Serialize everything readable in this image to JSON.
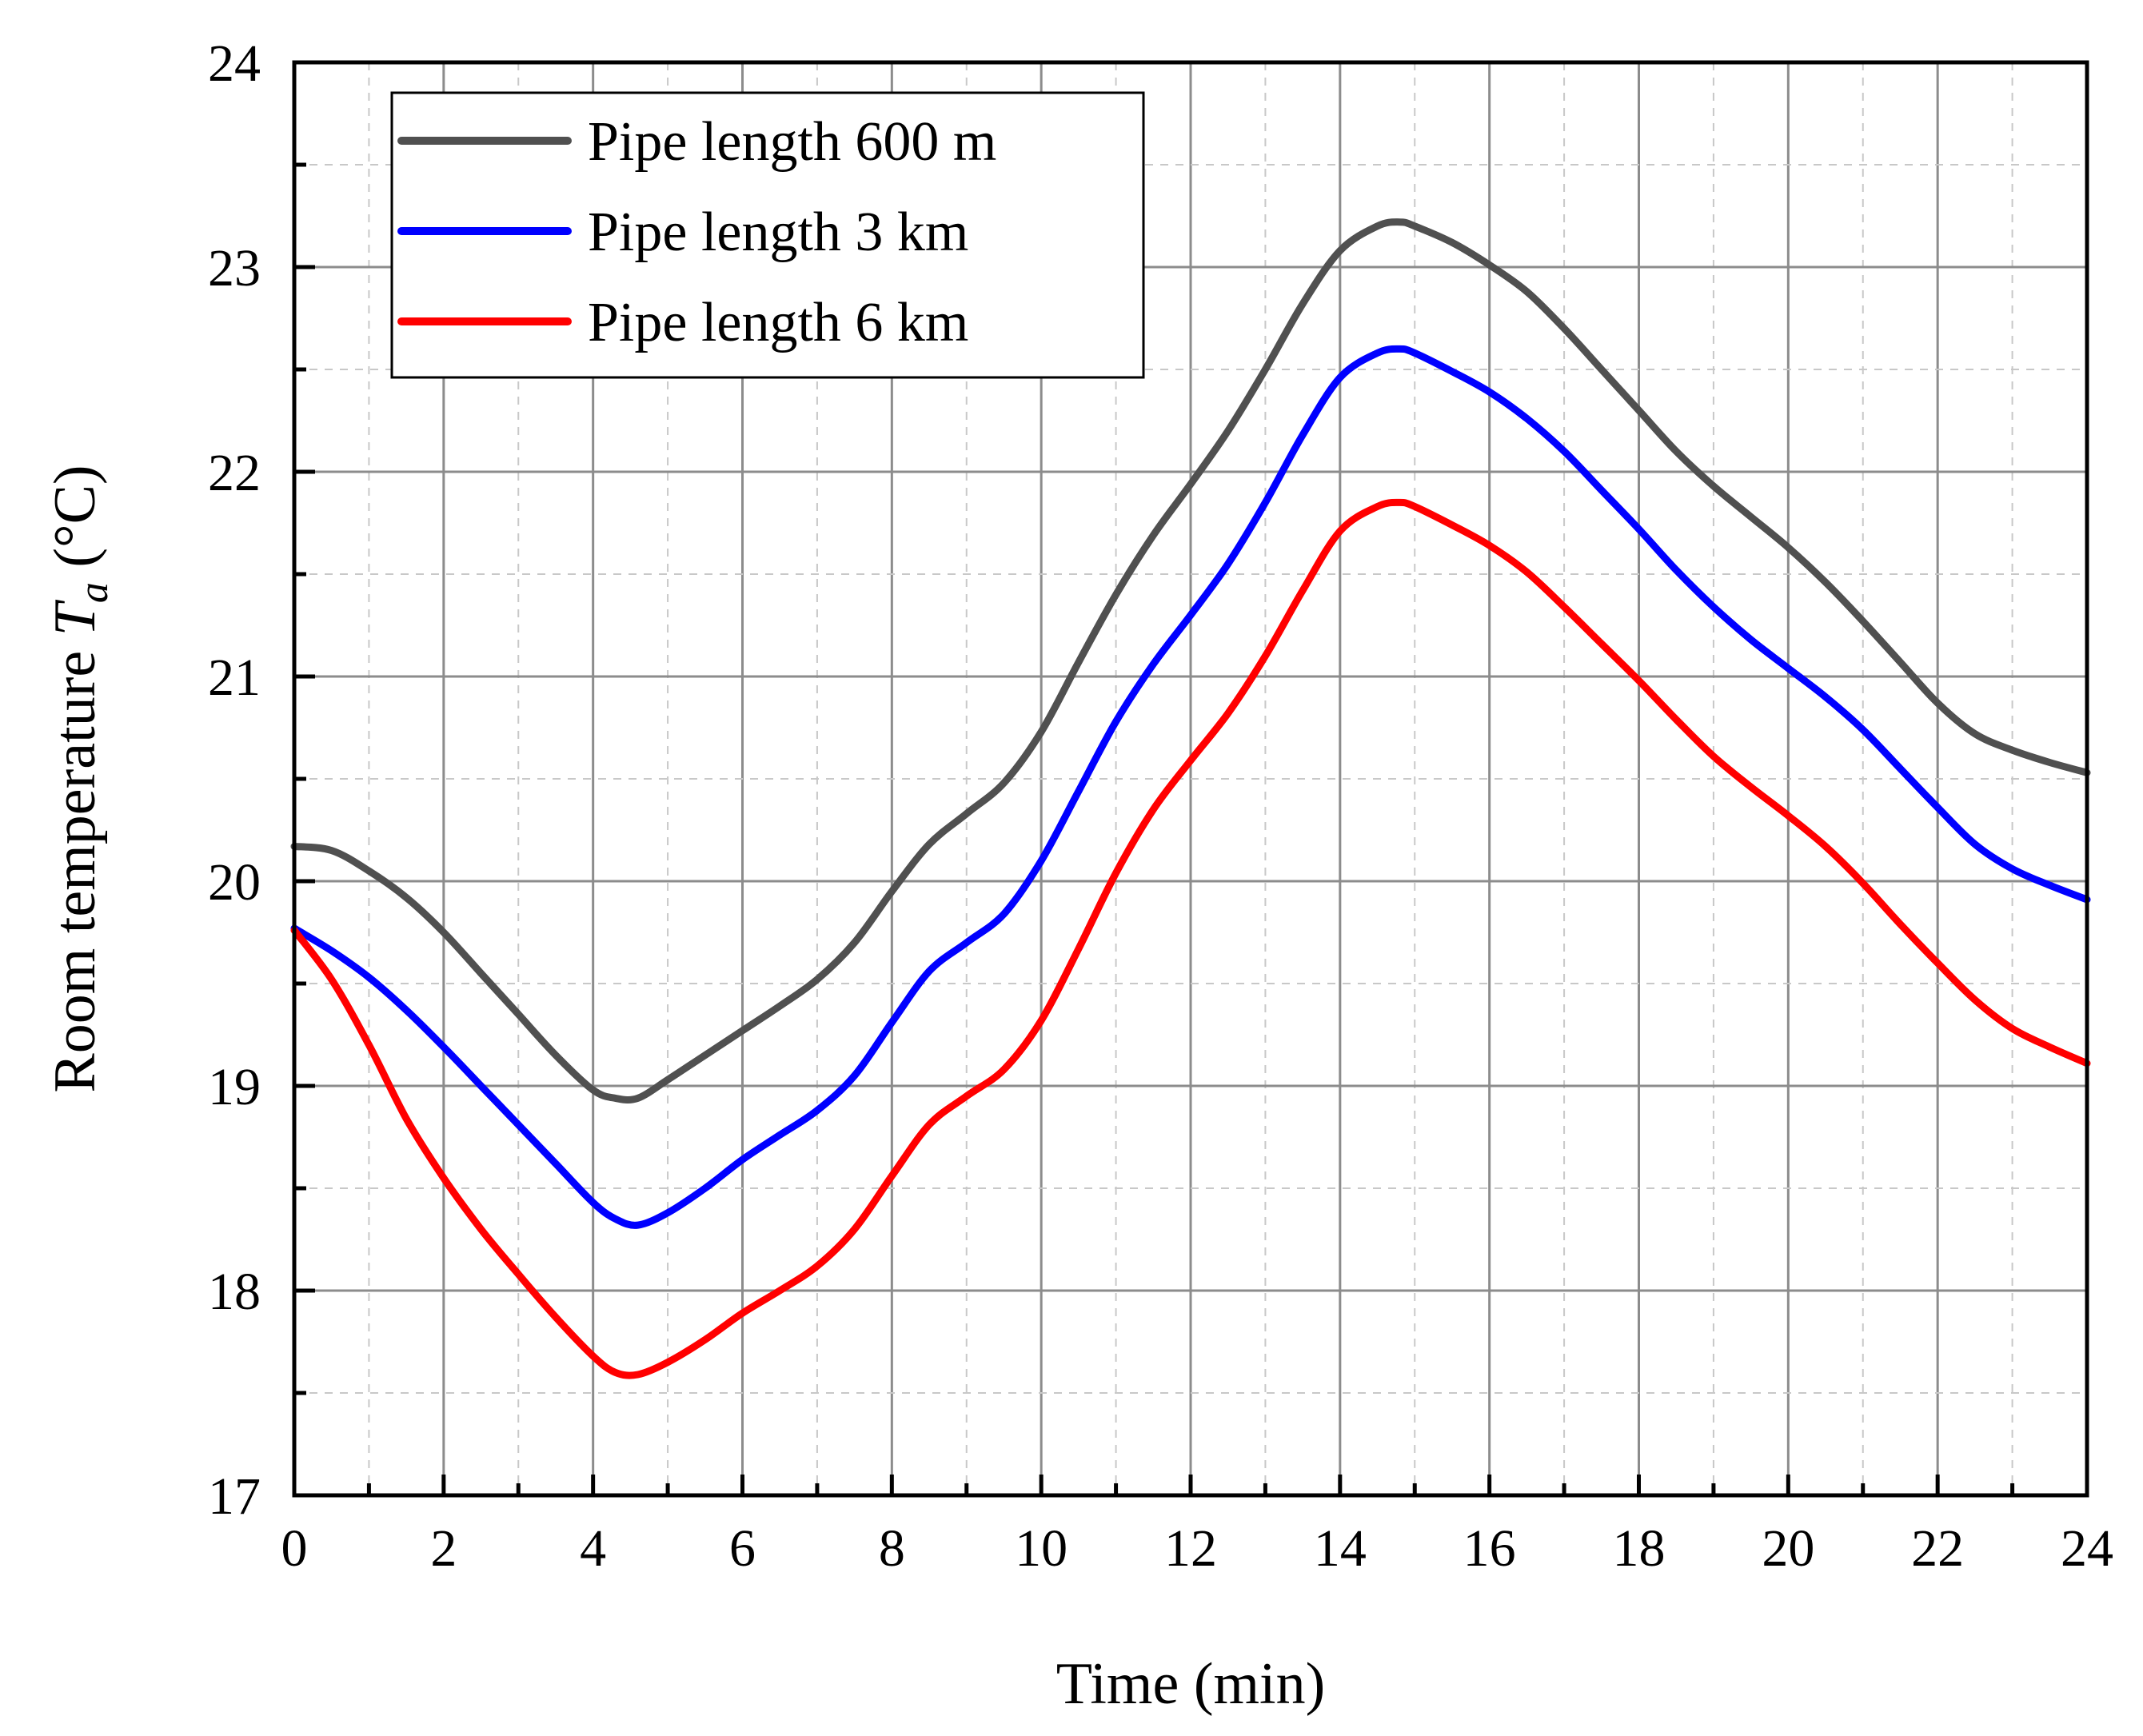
{
  "chart_data": {
    "type": "line",
    "title": "",
    "xlabel": "Time (min)",
    "ylabel_prefix": "Room temperature ",
    "ylabel_symbol": "T",
    "ylabel_subscript": "a",
    "ylabel_unit": " (°C)",
    "xlim": [
      0,
      24
    ],
    "ylim": [
      17,
      24
    ],
    "xticks": [
      0,
      2,
      4,
      6,
      8,
      10,
      12,
      14,
      16,
      18,
      20,
      22,
      24
    ],
    "yticks": [
      17,
      18,
      19,
      20,
      21,
      22,
      23,
      24
    ],
    "grid": true,
    "legend_position": "top-left",
    "series": [
      {
        "name": "Pipe length 600 m",
        "color": "#505050",
        "x": [
          0,
          0.5,
          1,
          1.5,
          2,
          2.5,
          3,
          3.5,
          4,
          4.3,
          4.6,
          5,
          5.5,
          6,
          6.5,
          7,
          7.5,
          8,
          8.5,
          9,
          9.5,
          10,
          10.5,
          11,
          11.5,
          12,
          12.5,
          13,
          13.5,
          14,
          14.5,
          14.8,
          15,
          15.5,
          16,
          16.5,
          17,
          17.5,
          18,
          18.5,
          19,
          19.5,
          20,
          20.5,
          21,
          21.5,
          22,
          22.5,
          23,
          23.5,
          24
        ],
        "y": [
          20.17,
          20.15,
          20.05,
          19.92,
          19.75,
          19.55,
          19.35,
          19.15,
          18.98,
          18.94,
          18.94,
          19.03,
          19.15,
          19.27,
          19.39,
          19.52,
          19.7,
          19.95,
          20.18,
          20.33,
          20.48,
          20.73,
          21.07,
          21.4,
          21.69,
          21.94,
          22.2,
          22.5,
          22.82,
          23.08,
          23.2,
          23.22,
          23.2,
          23.12,
          23.01,
          22.88,
          22.7,
          22.5,
          22.3,
          22.1,
          21.93,
          21.78,
          21.63,
          21.46,
          21.27,
          21.07,
          20.87,
          20.72,
          20.64,
          20.58,
          20.53
        ]
      },
      {
        "name": "Pipe length 3 km",
        "color": "#0000ff",
        "x": [
          0,
          0.5,
          1,
          1.5,
          2,
          2.5,
          3,
          3.5,
          4,
          4.3,
          4.6,
          5,
          5.5,
          6,
          6.5,
          7,
          7.5,
          8,
          8.5,
          9,
          9.5,
          10,
          10.5,
          11,
          11.5,
          12,
          12.5,
          13,
          13.5,
          14,
          14.5,
          14.8,
          15,
          15.5,
          16,
          16.5,
          17,
          17.5,
          18,
          18.5,
          19,
          19.5,
          20,
          20.5,
          21,
          21.5,
          22,
          22.5,
          23,
          23.5,
          24
        ],
        "y": [
          19.77,
          19.66,
          19.53,
          19.37,
          19.19,
          19.0,
          18.81,
          18.62,
          18.43,
          18.35,
          18.32,
          18.38,
          18.5,
          18.64,
          18.76,
          18.88,
          19.05,
          19.31,
          19.56,
          19.7,
          19.84,
          20.1,
          20.44,
          20.78,
          21.06,
          21.3,
          21.55,
          21.85,
          22.18,
          22.46,
          22.58,
          22.6,
          22.58,
          22.49,
          22.39,
          22.26,
          22.1,
          21.91,
          21.72,
          21.52,
          21.34,
          21.18,
          21.04,
          20.9,
          20.74,
          20.55,
          20.36,
          20.18,
          20.06,
          19.98,
          19.91
        ]
      },
      {
        "name": "Pipe length 6 km",
        "color": "#ff0000",
        "x": [
          0,
          0.5,
          1,
          1.5,
          2,
          2.5,
          3,
          3.5,
          4,
          4.3,
          4.6,
          5,
          5.5,
          6,
          6.5,
          7,
          7.5,
          8,
          8.5,
          9,
          9.5,
          10,
          10.5,
          11,
          11.5,
          12,
          12.5,
          13,
          13.5,
          14,
          14.5,
          14.8,
          15,
          15.5,
          16,
          16.5,
          17,
          17.5,
          18,
          18.5,
          19,
          19.5,
          20,
          20.5,
          21,
          21.5,
          22,
          22.5,
          23,
          23.5,
          24
        ],
        "y": [
          19.76,
          19.52,
          19.2,
          18.84,
          18.55,
          18.3,
          18.08,
          17.87,
          17.68,
          17.6,
          17.59,
          17.65,
          17.76,
          17.89,
          18.0,
          18.12,
          18.3,
          18.56,
          18.81,
          18.95,
          19.08,
          19.32,
          19.67,
          20.04,
          20.35,
          20.59,
          20.82,
          21.1,
          21.42,
          21.71,
          21.83,
          21.85,
          21.83,
          21.74,
          21.64,
          21.51,
          21.34,
          21.16,
          20.98,
          20.79,
          20.61,
          20.46,
          20.32,
          20.17,
          19.99,
          19.79,
          19.6,
          19.42,
          19.28,
          19.19,
          19.11
        ]
      }
    ]
  }
}
